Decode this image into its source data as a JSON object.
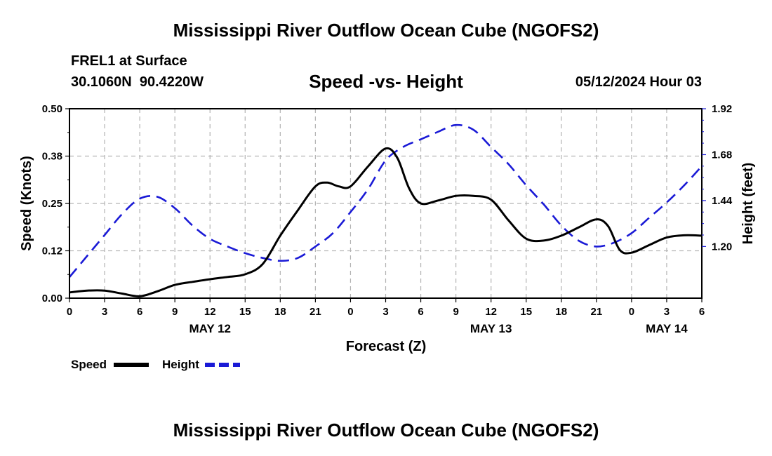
{
  "page": {
    "title": "Mississippi River Outflow Ocean Cube (NGOFS2)",
    "footer_title": "Mississippi River Outflow Ocean Cube (NGOFS2)",
    "station_line": "FREL1 at Surface",
    "coords_line": "30.1060N  90.4220W",
    "timestamp": "05/12/2024 Hour 03"
  },
  "colors": {
    "speed": "#000000",
    "height": "#1a1ad6",
    "grid": "#b3b3b3"
  },
  "chart_data": {
    "type": "line",
    "title": "Speed -vs- Height",
    "xlabel": "Forecast (Z)",
    "ylabel": "Speed (Knots)",
    "y2label": "Height (feet)",
    "x_range": [
      0,
      54
    ],
    "x_ticks": [
      {
        "x": 0,
        "label": "0"
      },
      {
        "x": 3,
        "label": "3"
      },
      {
        "x": 6,
        "label": "6"
      },
      {
        "x": 9,
        "label": "9"
      },
      {
        "x": 12,
        "label": "12"
      },
      {
        "x": 15,
        "label": "15"
      },
      {
        "x": 18,
        "label": "18"
      },
      {
        "x": 21,
        "label": "21"
      },
      {
        "x": 24,
        "label": "0"
      },
      {
        "x": 27,
        "label": "3"
      },
      {
        "x": 30,
        "label": "6"
      },
      {
        "x": 33,
        "label": "9"
      },
      {
        "x": 36,
        "label": "12"
      },
      {
        "x": 39,
        "label": "15"
      },
      {
        "x": 42,
        "label": "18"
      },
      {
        "x": 45,
        "label": "21"
      },
      {
        "x": 48,
        "label": "0"
      },
      {
        "x": 51,
        "label": "3"
      },
      {
        "x": 54,
        "label": "6"
      }
    ],
    "date_labels": [
      {
        "x": 12,
        "label": "MAY 12"
      },
      {
        "x": 36,
        "label": "MAY 13"
      },
      {
        "x": 51,
        "label": "MAY 14"
      }
    ],
    "y_range": [
      0,
      0.5
    ],
    "y_ticks": [
      {
        "v": 0.0,
        "label": "0.00"
      },
      {
        "v": 0.125,
        "label": "0.12"
      },
      {
        "v": 0.25,
        "label": "0.25"
      },
      {
        "v": 0.375,
        "label": "0.38"
      },
      {
        "v": 0.5,
        "label": "0.50"
      }
    ],
    "y2_range": [
      0.93,
      1.92
    ],
    "y2_ticks": [
      {
        "v": 1.2,
        "label": "1.20"
      },
      {
        "v": 1.44,
        "label": "1.44"
      },
      {
        "v": 1.68,
        "label": "1.68"
      },
      {
        "v": 1.92,
        "label": "1.92"
      }
    ],
    "series": [
      {
        "name": "Speed",
        "axis": "left",
        "style": "solid",
        "x": [
          0,
          1.5,
          3,
          4.5,
          6,
          7.5,
          9,
          10.5,
          12,
          13.5,
          15,
          16.5,
          18,
          19.5,
          21,
          22,
          23,
          24,
          25.5,
          27,
          28,
          29,
          30,
          31.5,
          33,
          34.5,
          36,
          37.5,
          39,
          40.5,
          42,
          43.5,
          45,
          46,
          47,
          48,
          49.5,
          51,
          52.5,
          54
        ],
        "values": [
          0.015,
          0.02,
          0.02,
          0.012,
          0.005,
          0.018,
          0.035,
          0.043,
          0.05,
          0.056,
          0.063,
          0.09,
          0.165,
          0.232,
          0.295,
          0.305,
          0.295,
          0.295,
          0.348,
          0.395,
          0.37,
          0.29,
          0.25,
          0.258,
          0.27,
          0.27,
          0.26,
          0.205,
          0.157,
          0.152,
          0.165,
          0.187,
          0.208,
          0.19,
          0.127,
          0.12,
          0.14,
          0.16,
          0.166,
          0.165
        ]
      },
      {
        "name": "Height",
        "axis": "right",
        "style": "dashed",
        "x": [
          0,
          1.5,
          3,
          4.5,
          6,
          7.5,
          9,
          10.5,
          12,
          13.5,
          15,
          16.5,
          18,
          19.5,
          21,
          22.5,
          24,
          25.5,
          27,
          28.5,
          30,
          31.5,
          33,
          34.5,
          36,
          37.5,
          39,
          40.5,
          42,
          43.5,
          45,
          46.5,
          48,
          49.5,
          51,
          52.5,
          54
        ],
        "values": [
          1.04,
          1.15,
          1.26,
          1.37,
          1.45,
          1.46,
          1.4,
          1.31,
          1.24,
          1.2,
          1.165,
          1.14,
          1.125,
          1.14,
          1.2,
          1.27,
          1.38,
          1.5,
          1.65,
          1.72,
          1.76,
          1.8,
          1.835,
          1.81,
          1.72,
          1.63,
          1.52,
          1.42,
          1.31,
          1.23,
          1.2,
          1.22,
          1.27,
          1.35,
          1.43,
          1.52,
          1.62
        ]
      }
    ],
    "legend": [
      {
        "name": "Speed",
        "label": "Speed"
      },
      {
        "name": "Height",
        "label": "Height"
      }
    ]
  }
}
